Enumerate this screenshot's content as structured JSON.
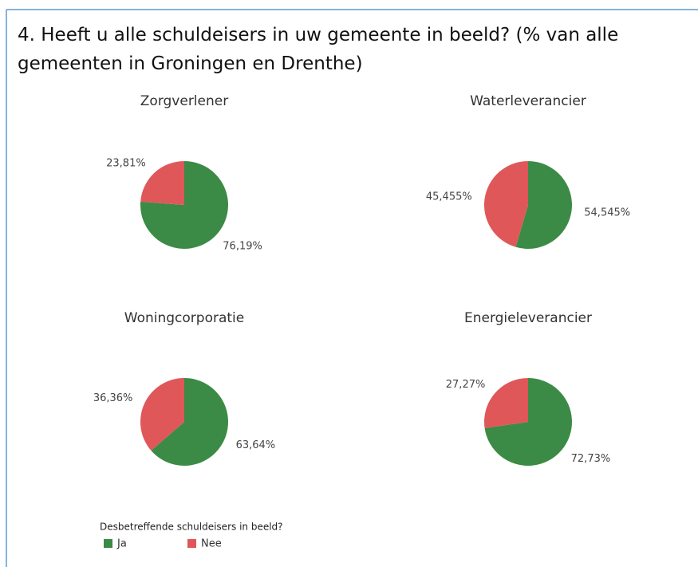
{
  "title": "4. Heeft u alle schuldeisers in uw gemeente in beeld? (% van alle gemeenten in Groningen en Drenthe)",
  "legend_title": "Desbetreffende schuldeisers in beeld?",
  "chart_data": [
    {
      "type": "pie",
      "title": "Zorgverlener",
      "categories": [
        "Ja",
        "Nee"
      ],
      "values": [
        76.19,
        23.81
      ],
      "value_labels": [
        "76,19%",
        "23,81%"
      ],
      "colors": [
        "#3b8b46",
        "#e05759"
      ]
    },
    {
      "type": "pie",
      "title": "Waterleverancier",
      "categories": [
        "Ja",
        "Nee"
      ],
      "values": [
        54.545,
        45.455
      ],
      "value_labels": [
        "54,545%",
        "45,455%"
      ],
      "colors": [
        "#3b8b46",
        "#e05759"
      ]
    },
    {
      "type": "pie",
      "title": "Woningcorporatie",
      "categories": [
        "Ja",
        "Nee"
      ],
      "values": [
        63.64,
        36.36
      ],
      "value_labels": [
        "63,64%",
        "36,36%"
      ],
      "colors": [
        "#3b8b46",
        "#e05759"
      ]
    },
    {
      "type": "pie",
      "title": "Energieleverancier",
      "categories": [
        "Ja",
        "Nee"
      ],
      "values": [
        72.73,
        27.27
      ],
      "value_labels": [
        "72,73%",
        "27,27%"
      ],
      "colors": [
        "#3b8b46",
        "#e05759"
      ]
    }
  ]
}
